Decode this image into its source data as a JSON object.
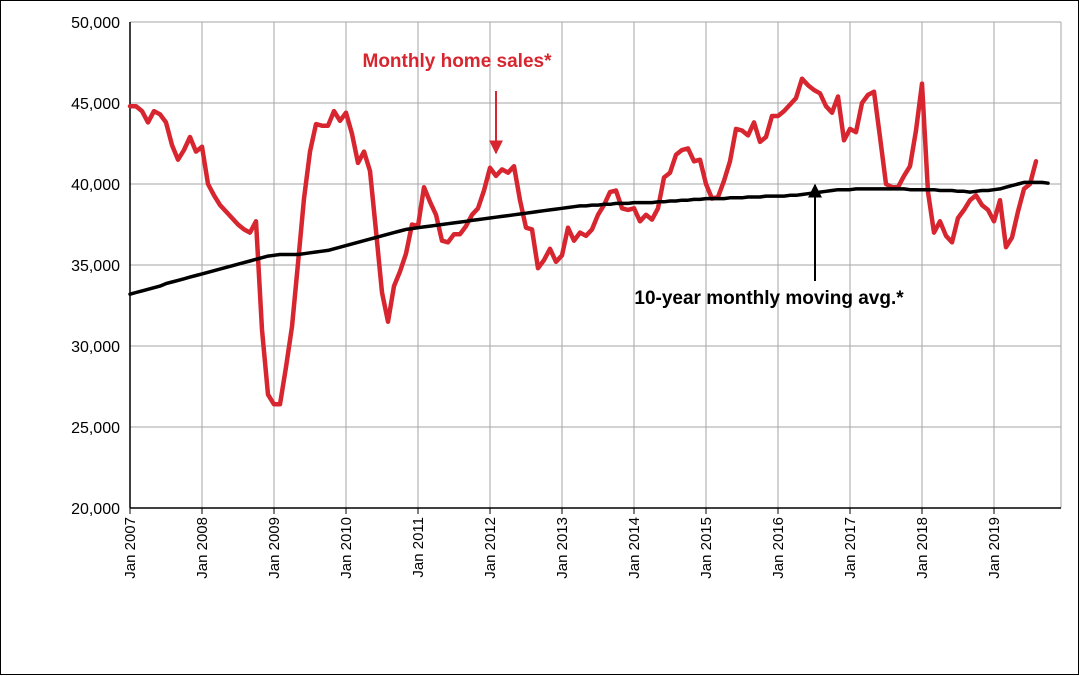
{
  "colors": {
    "sales": "#d7262f",
    "avg": "#000000",
    "grid": "#a6a6a6"
  },
  "chart_data": {
    "type": "line",
    "title": "",
    "xlabel": "",
    "ylabel": "",
    "x_start": "Jan 2007",
    "ylim": [
      20000,
      50000
    ],
    "y_ticks": [
      20000,
      25000,
      30000,
      35000,
      40000,
      45000,
      50000
    ],
    "y_tick_labels": [
      "20,000",
      "25,000",
      "30,000",
      "35,000",
      "40,000",
      "45,000",
      "50,000"
    ],
    "x_tick_labels": [
      "Jan 2007",
      "Jan 2008",
      "Jan 2009",
      "Jan 2010",
      "Jan 2011",
      "Jan 2012",
      "Jan 2013",
      "Jan 2014",
      "Jan 2015",
      "Jan 2016",
      "Jan 2017",
      "Jan 2018",
      "Jan 2019"
    ],
    "grid": true,
    "legend": "none",
    "annotations": [
      {
        "text": "Monthly home sales*",
        "series": 0
      },
      {
        "text": "10-year monthly moving avg.*",
        "series": 1
      }
    ],
    "series": [
      {
        "values": [
          44800,
          44800,
          44500,
          43800,
          44500,
          44300,
          43800,
          42400,
          41500,
          42100,
          42900,
          42000,
          42300,
          40000,
          39300,
          38700,
          38300,
          37900,
          37500,
          37200,
          37000,
          37700,
          31000,
          27000,
          26400,
          26400,
          28700,
          31200,
          35100,
          39100,
          42000,
          43700,
          43600,
          43600,
          44500,
          43900,
          44400,
          43100,
          41300,
          42000,
          40800,
          37100,
          33300,
          31500,
          33700,
          34600,
          35700,
          37500,
          37400,
          39800,
          38900,
          38100,
          36500,
          36400,
          36900,
          36900,
          37400,
          38100,
          38500,
          39600,
          41000,
          40500,
          40900,
          40700,
          41100,
          39000,
          37300,
          37200,
          34800,
          35300,
          36000,
          35200,
          35600,
          37300,
          36500,
          37000,
          36800,
          37200,
          38100,
          38700,
          39500,
          39600,
          38500,
          38400,
          38500,
          37700,
          38100,
          37800,
          38500,
          40400,
          40700,
          41800,
          42100,
          42200,
          41400,
          41500,
          40000,
          39100,
          39200,
          40200,
          41400,
          43400,
          43300,
          43000,
          43800,
          42600,
          42900,
          44200,
          44200,
          44500,
          44900,
          45300,
          46500,
          46100,
          45800,
          45600,
          44800,
          44400,
          45400,
          42700,
          43400,
          43200,
          45000,
          45500,
          45700,
          42900,
          40000,
          39800,
          39800,
          40500,
          41100,
          43300,
          46200,
          39500,
          37000,
          37700,
          36800,
          36400,
          37900,
          38400,
          39000,
          39300,
          38700,
          38400,
          37700,
          39000,
          36100,
          36700,
          38300,
          39700,
          40000,
          41400
        ]
      },
      {
        "values": [
          33200,
          33300,
          33400,
          33500,
          33600,
          33700,
          33850,
          33950,
          34050,
          34150,
          34250,
          34350,
          34450,
          34550,
          34650,
          34750,
          34850,
          34950,
          35050,
          35150,
          35250,
          35350,
          35450,
          35550,
          35600,
          35650,
          35650,
          35650,
          35650,
          35700,
          35750,
          35800,
          35850,
          35900,
          36000,
          36100,
          36200,
          36300,
          36400,
          36500,
          36600,
          36700,
          36800,
          36900,
          37000,
          37100,
          37200,
          37250,
          37300,
          37350,
          37400,
          37450,
          37500,
          37550,
          37600,
          37650,
          37700,
          37750,
          37800,
          37850,
          37900,
          37950,
          38000,
          38050,
          38100,
          38150,
          38200,
          38250,
          38300,
          38350,
          38400,
          38450,
          38500,
          38550,
          38600,
          38650,
          38650,
          38700,
          38700,
          38750,
          38750,
          38800,
          38800,
          38800,
          38850,
          38850,
          38850,
          38850,
          38900,
          38900,
          38950,
          38950,
          39000,
          39000,
          39050,
          39050,
          39100,
          39100,
          39100,
          39100,
          39150,
          39150,
          39150,
          39200,
          39200,
          39200,
          39250,
          39250,
          39250,
          39250,
          39300,
          39300,
          39350,
          39400,
          39450,
          39500,
          39550,
          39600,
          39650,
          39650,
          39650,
          39700,
          39700,
          39700,
          39700,
          39700,
          39700,
          39700,
          39700,
          39700,
          39650,
          39650,
          39650,
          39650,
          39650,
          39600,
          39600,
          39600,
          39550,
          39550,
          39500,
          39550,
          39600,
          39600,
          39650,
          39700,
          39800,
          39900,
          40000,
          40100,
          40100,
          40100,
          40100,
          40050
        ]
      }
    ]
  }
}
